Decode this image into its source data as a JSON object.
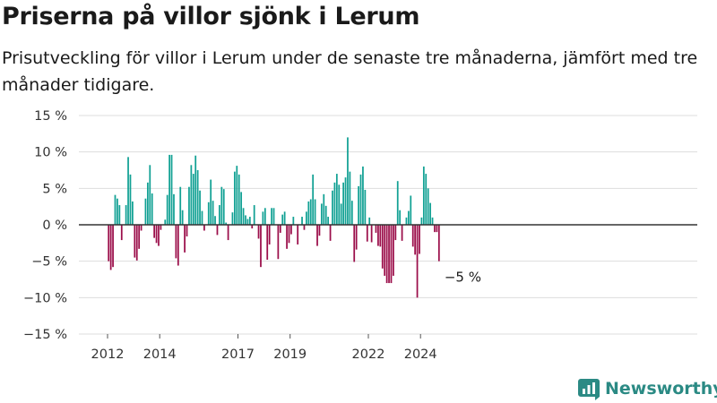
{
  "title": "Priserna på villor sjönk i Lerum",
  "subtitle": "Prisutveckling för villor i Lerum under de senaste tre månaderna, jämfört med tre månader tidigare.",
  "brand": "Newsworthy",
  "colors": {
    "positive": "#12a194",
    "negative": "#9b0e4a",
    "grid": "#dddddd",
    "zero": "#333333",
    "brand": "#2b8a84"
  },
  "chart_data": {
    "type": "bar",
    "title": "Priserna på villor sjönk i Lerum",
    "xlabel": "",
    "ylabel": "",
    "ylim": [
      -15,
      15
    ],
    "yticks": [
      15,
      10,
      5,
      0,
      -5,
      -10,
      -15
    ],
    "ytick_labels": [
      "15 %",
      "10 %",
      "5 %",
      "0 %",
      "−5 %",
      "−10 %",
      "−15 %"
    ],
    "xtick_labels": [
      {
        "label": "2012",
        "year": 2012.0
      },
      {
        "label": "2014",
        "year": 2014.0
      },
      {
        "label": "2017",
        "year": 2017.0
      },
      {
        "label": "2019",
        "year": 2019.0
      },
      {
        "label": "2022",
        "year": 2022.0
      },
      {
        "label": "2024",
        "year": 2024.0
      }
    ],
    "grid": true,
    "annotation": {
      "label": "−5 %",
      "value": -5
    },
    "start_month": "2012-01",
    "series": [
      {
        "values": [
          -5,
          -6.2,
          -5.8,
          4.1,
          3.6,
          2.7,
          -2.1,
          0,
          2.7,
          9.3,
          6.9,
          3.2,
          -4.5,
          -4.9,
          -3.3,
          -0.8,
          0,
          3.6,
          5.8,
          8.2,
          4.3,
          -1.8,
          -2.5,
          -2.9,
          -0.7,
          0,
          0.7,
          4.1,
          9.6,
          9.6,
          4.2,
          -4.6,
          -5.6,
          5.2,
          2,
          -3.8,
          -1.6,
          5.2,
          8.2,
          7,
          9.5,
          7.5,
          4.7,
          1.9,
          -0.8,
          0,
          3.1,
          6.2,
          3.3,
          1.2,
          -1.4,
          2.7,
          5.2,
          4.9,
          0.3,
          -2.1,
          0,
          1.7,
          7.3,
          8.1,
          6.9,
          4.5,
          2.3,
          1.3,
          0.8,
          1.1,
          -0.5,
          2.7,
          0,
          -1.9,
          -5.8,
          1.8,
          2.3,
          -4.8,
          -2.7,
          2.3,
          2.3,
          0,
          -4.7,
          -1.1,
          1.4,
          1.8,
          -3.3,
          -2.5,
          -1.3,
          1.1,
          0,
          -2.7,
          0,
          1.1,
          -0.7,
          1.8,
          3.2,
          3.5,
          6.9,
          3.5,
          -2.9,
          -1.5,
          2.9,
          4.2,
          2.6,
          1.1,
          -2.2,
          4.7,
          5.8,
          7,
          5.5,
          2.9,
          5.8,
          6.5,
          12,
          7.3,
          3.3,
          -5.1,
          -3.4,
          5.3,
          6.9,
          8,
          4.8,
          -2.3,
          1,
          -2.4,
          0,
          -1.1,
          -2.9,
          -3,
          -6,
          -7,
          -8,
          -8,
          -8,
          -7,
          -2.1,
          6,
          2,
          -2.2,
          0,
          1,
          1.9,
          4,
          -3,
          -4.1,
          -10,
          -4,
          1,
          8,
          7,
          5,
          3,
          1,
          -1,
          -1,
          -5
        ]
      }
    ]
  }
}
